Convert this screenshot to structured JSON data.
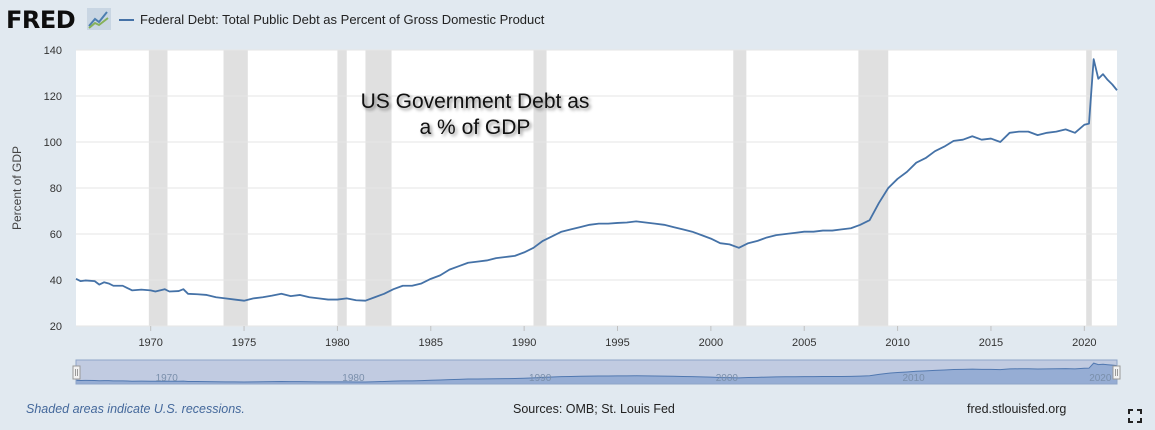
{
  "header": {
    "logo_text": "FRED",
    "logo_icon": "chart-trend-icon",
    "series_title": "Federal Debt: Total Public Debt as Percent of Gross Domestic Product"
  },
  "colors": {
    "background": "#e1e9f0",
    "plot_background": "#ffffff",
    "series": "#4572a7",
    "recession": "#e0e0e0",
    "grid": "#e6e6e6",
    "navigator_fill": "#b0c4de"
  },
  "annotation": {
    "line1": "US Government Debt as",
    "line2": "a % of GDP"
  },
  "footer": {
    "recession_note": "Shaded areas indicate U.S. recessions.",
    "sources": "Sources: OMB; St. Louis Fed",
    "site": "fred.stlouisfed.org",
    "fullscreen_icon": "fullscreen-icon"
  },
  "navigator": {
    "labels": [
      "1970",
      "1980",
      "1990",
      "2000",
      "2010",
      "2020"
    ]
  },
  "chart_data": {
    "type": "line",
    "title": "Federal Debt: Total Public Debt as Percent of Gross Domestic Product",
    "xlabel": "",
    "ylabel": "Percent of GDP",
    "xlim": [
      1966.0,
      2021.75
    ],
    "ylim": [
      20,
      140
    ],
    "yticks": [
      20,
      40,
      60,
      80,
      100,
      120,
      140
    ],
    "xticks": [
      "1970",
      "1975",
      "1980",
      "1985",
      "1990",
      "1995",
      "2000",
      "2005",
      "2010",
      "2015",
      "2020"
    ],
    "grid": true,
    "legend": "top-left",
    "recessions": [
      [
        1969.9,
        1970.9
      ],
      [
        1973.9,
        1975.2
      ],
      [
        1980.0,
        1980.5
      ],
      [
        1981.5,
        1982.9
      ],
      [
        1990.5,
        1991.2
      ],
      [
        2001.2,
        2001.9
      ],
      [
        2007.9,
        2009.5
      ],
      [
        2020.1,
        2020.4
      ]
    ],
    "series": [
      {
        "name": "Federal Debt: Total Public Debt as Percent of Gross Domestic Product",
        "x": [
          1966.0,
          1966.25,
          1966.5,
          1967.0,
          1967.25,
          1967.5,
          1967.75,
          1968.0,
          1968.5,
          1968.75,
          1969.0,
          1969.5,
          1970.0,
          1970.25,
          1970.5,
          1970.75,
          1971.0,
          1971.5,
          1971.75,
          1972.0,
          1972.5,
          1973.0,
          1973.5,
          1974.0,
          1974.5,
          1975.0,
          1975.5,
          1976.0,
          1976.5,
          1977.0,
          1977.5,
          1978.0,
          1978.5,
          1979.0,
          1979.5,
          1980.0,
          1980.5,
          1981.0,
          1981.5,
          1982.0,
          1982.5,
          1983.0,
          1983.5,
          1984.0,
          1984.5,
          1985.0,
          1985.5,
          1986.0,
          1986.5,
          1987.0,
          1987.5,
          1988.0,
          1988.5,
          1989.0,
          1989.5,
          1990.0,
          1990.5,
          1991.0,
          1991.5,
          1992.0,
          1992.5,
          1993.0,
          1993.5,
          1994.0,
          1994.5,
          1995.0,
          1995.5,
          1996.0,
          1996.5,
          1997.0,
          1997.5,
          1998.0,
          1998.5,
          1999.0,
          1999.5,
          2000.0,
          2000.5,
          2001.0,
          2001.5,
          2002.0,
          2002.5,
          2003.0,
          2003.5,
          2004.0,
          2004.5,
          2005.0,
          2005.5,
          2006.0,
          2006.5,
          2007.0,
          2007.5,
          2008.0,
          2008.5,
          2009.0,
          2009.5,
          2010.0,
          2010.5,
          2011.0,
          2011.5,
          2012.0,
          2012.5,
          2013.0,
          2013.5,
          2014.0,
          2014.5,
          2015.0,
          2015.5,
          2016.0,
          2016.5,
          2017.0,
          2017.5,
          2018.0,
          2018.5,
          2019.0,
          2019.5,
          2020.0,
          2020.25,
          2020.5,
          2020.75,
          2021.0,
          2021.25,
          2021.5,
          2021.75
        ],
        "values": [
          40.5,
          39.5,
          39.8,
          39.5,
          38.0,
          39.0,
          38.5,
          37.5,
          37.5,
          36.5,
          35.5,
          35.8,
          35.5,
          35.0,
          35.5,
          36.0,
          35.0,
          35.2,
          36.0,
          34.0,
          33.8,
          33.5,
          32.5,
          32.0,
          31.5,
          31.0,
          32.0,
          32.5,
          33.2,
          34.0,
          33.0,
          33.5,
          32.5,
          32.0,
          31.5,
          31.5,
          32.0,
          31.2,
          31.0,
          32.5,
          34.0,
          36.0,
          37.5,
          37.5,
          38.5,
          40.5,
          42.0,
          44.5,
          46.0,
          47.5,
          48.0,
          48.5,
          49.5,
          50.0,
          50.5,
          52.0,
          54.0,
          57.0,
          59.0,
          61.0,
          62.0,
          63.0,
          64.0,
          64.5,
          64.5,
          64.8,
          65.0,
          65.5,
          65.0,
          64.5,
          64.0,
          63.0,
          62.0,
          61.0,
          59.5,
          58.0,
          56.0,
          55.5,
          54.0,
          56.0,
          57.0,
          58.5,
          59.5,
          60.0,
          60.5,
          61.0,
          61.0,
          61.5,
          61.5,
          62.0,
          62.5,
          64.0,
          66.0,
          73.5,
          80.0,
          84.0,
          87.0,
          91.0,
          93.0,
          96.0,
          98.0,
          100.5,
          101.0,
          102.5,
          101.0,
          101.5,
          100.0,
          104.0,
          104.5,
          104.5,
          103.0,
          104.0,
          104.5,
          105.5,
          104.0,
          107.5,
          108.0,
          136.0,
          127.5,
          129.5,
          127.0,
          125.0,
          122.5
        ]
      }
    ]
  }
}
